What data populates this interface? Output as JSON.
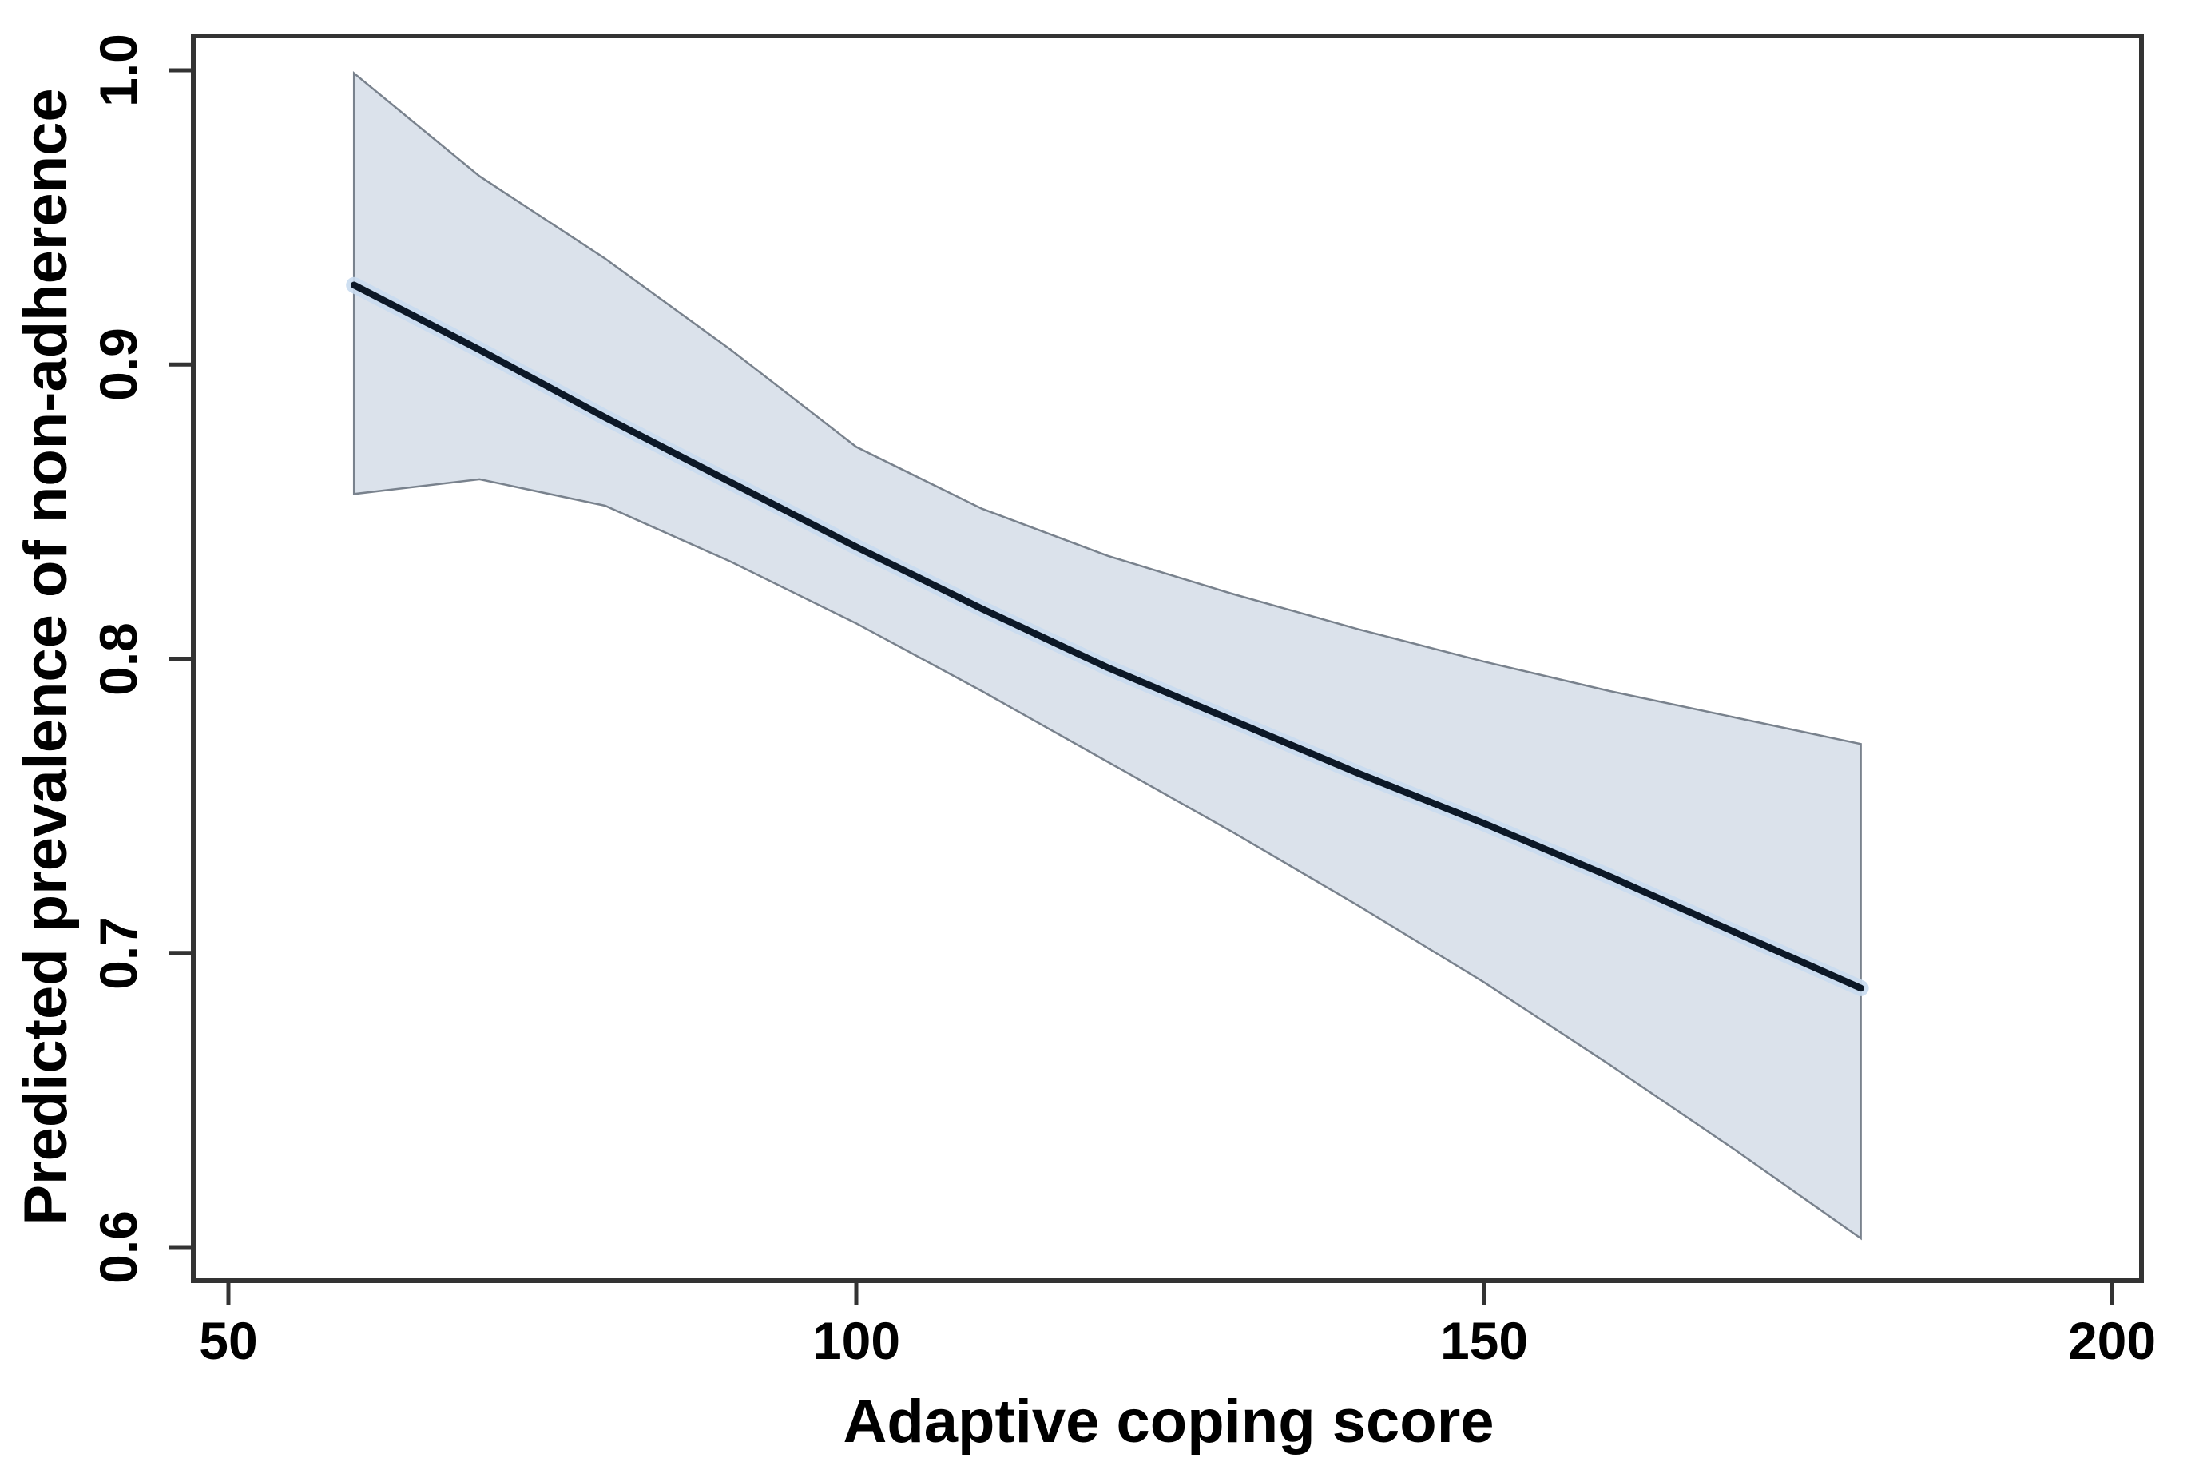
{
  "figure": {
    "background": "#ffffff"
  },
  "chart_data": {
    "type": "line",
    "title": "",
    "xlabel": "Adaptive coping score",
    "ylabel": "Predicted prevalence of non-adherence",
    "x": [
      60,
      70,
      80,
      90,
      100,
      110,
      120,
      130,
      140,
      150,
      160,
      170,
      180
    ],
    "series": [
      {
        "name": "Predicted prevalence",
        "role": "center",
        "values": [
          0.927,
          0.905,
          0.882,
          0.86,
          0.838,
          0.817,
          0.797,
          0.779,
          0.761,
          0.744,
          0.726,
          0.707,
          0.688
        ]
      },
      {
        "name": "95% CI upper bound",
        "role": "ci_upper",
        "values": [
          0.999,
          0.964,
          0.936,
          0.905,
          0.872,
          0.851,
          0.835,
          0.822,
          0.81,
          0.799,
          0.789,
          0.78,
          0.771
        ]
      },
      {
        "name": "95% CI lower bound",
        "role": "ci_lower",
        "values": [
          0.856,
          0.861,
          0.852,
          0.833,
          0.812,
          0.789,
          0.765,
          0.741,
          0.716,
          0.69,
          0.662,
          0.633,
          0.603
        ]
      }
    ],
    "x_ticks": {
      "values": [
        50,
        100,
        150,
        200
      ],
      "labels": [
        "50",
        "100",
        "150",
        "200"
      ]
    },
    "y_ticks": {
      "values": [
        0.6,
        0.7,
        0.8,
        0.9,
        1.0
      ],
      "labels": [
        "0.6",
        "0.7",
        "0.8",
        "0.9",
        "1.0"
      ]
    },
    "xlim": [
      47.2,
      202.6
    ],
    "ylim": [
      0.588,
      1.012
    ],
    "grid": "off",
    "legend": "none",
    "colors": {
      "band_fill": "#dbe2eb",
      "band_edge": "#79828d",
      "line": "#0c1827",
      "line_halo": "#c9dbef",
      "axis": "#333333",
      "text": "#000000",
      "background": "#ffffff"
    }
  }
}
